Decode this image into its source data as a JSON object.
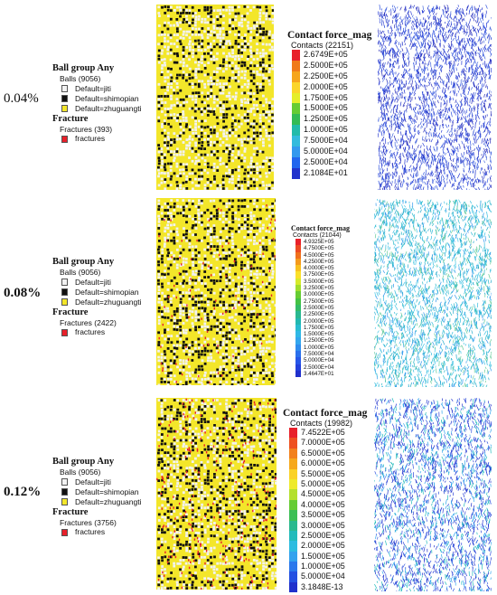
{
  "colors": {
    "jiti": "#f2f2f2",
    "shimopian": "#111111",
    "zhuguangti": "#f3e62a",
    "fractures": "#e8202a"
  },
  "rows": [
    {
      "strain": "0.04%",
      "bold": false,
      "legend": {
        "ball_group": "Ball group Any",
        "balls": "Balls (9056)",
        "items": [
          "Default=jiti",
          "Default=shimopian",
          "Default=zhuguangti"
        ],
        "fracture_title": "Fracture",
        "fractures_count": "Fractures (393)",
        "fracture_item": "fractures"
      },
      "colorbar": {
        "title": "Contact force_mag",
        "contacts": "Contacts (22151)",
        "labels": [
          "2.6749E+05",
          "2.5000E+05",
          "2.2500E+05",
          "2.0000E+05",
          "1.7500E+05",
          "1.5000E+05",
          "1.2500E+05",
          "1.0000E+05",
          "7.5000E+04",
          "5.0000E+04",
          "2.5000E+04",
          "2.1084E+01"
        ],
        "colors": [
          "#e8202a",
          "#f07a1a",
          "#f6a51c",
          "#fbd52a",
          "#e5ee2a",
          "#66cc33",
          "#33bb55",
          "#22bbaa",
          "#33bbdd",
          "#3399ee",
          "#2266ee",
          "#2233cc"
        ]
      }
    },
    {
      "strain": "0.08%",
      "bold": true,
      "legend": {
        "ball_group": "Ball group Any",
        "balls": "Balls (9056)",
        "items": [
          "Default=jiti",
          "Default=shimopian",
          "Default=zhuguangti"
        ],
        "fracture_title": "Fracture",
        "fractures_count": "Fractures (2422)",
        "fracture_item": "fractures"
      },
      "colorbar": {
        "title": "Contact force_mag",
        "contacts": "Contacts (21044)",
        "labels": [
          "4.9325E+05",
          "4.7500E+05",
          "4.5000E+05",
          "4.2500E+05",
          "4.0000E+05",
          "3.7500E+05",
          "3.5000E+05",
          "3.2500E+05",
          "3.0000E+05",
          "2.7500E+05",
          "2.5000E+05",
          "2.2500E+05",
          "2.0000E+05",
          "1.7500E+05",
          "1.5000E+05",
          "1.2500E+05",
          "1.0000E+05",
          "7.5000E+04",
          "5.0000E+04",
          "2.5000E+04",
          "3.4647E+01"
        ],
        "colors": [
          "#e8202a",
          "#ec4a22",
          "#f0701c",
          "#f49a1c",
          "#f8c01e",
          "#fbe02a",
          "#d6ea2a",
          "#a0dd2c",
          "#66cc33",
          "#44c244",
          "#33bb66",
          "#2ab890",
          "#22b8b0",
          "#28bcd0",
          "#30b8e6",
          "#33a6ee",
          "#2f8cee",
          "#2a70ec",
          "#2656e8",
          "#2240dc",
          "#2030cc"
        ]
      }
    },
    {
      "strain": "0.12%",
      "bold": true,
      "legend": {
        "ball_group": "Ball group Any",
        "balls": "Balls (9056)",
        "items": [
          "Default=jiti",
          "Default=shimopian",
          "Default=zhuguangti"
        ],
        "fracture_title": "Fracture",
        "fractures_count": "Fractures (3756)",
        "fracture_item": "fractures"
      },
      "colorbar": {
        "title": "Contact force_mag",
        "contacts": "Contacts (19982)",
        "labels": [
          "7.4522E+05",
          "7.0000E+05",
          "6.5000E+05",
          "6.0000E+05",
          "5.5000E+05",
          "5.0000E+05",
          "4.5000E+05",
          "4.0000E+05",
          "3.5000E+05",
          "3.0000E+05",
          "2.5000E+05",
          "2.0000E+05",
          "1.5000E+05",
          "1.0000E+05",
          "5.0000E+04",
          "3.1848E-13"
        ],
        "colors": [
          "#e8202a",
          "#ee5020",
          "#f2801c",
          "#f6a81c",
          "#fad226",
          "#eeea2a",
          "#b4e02c",
          "#66cc33",
          "#3cbf55",
          "#2ab98e",
          "#22bbbb",
          "#2cbce0",
          "#33a2ee",
          "#2b78ec",
          "#2450e2",
          "#2030cc"
        ]
      }
    }
  ]
}
